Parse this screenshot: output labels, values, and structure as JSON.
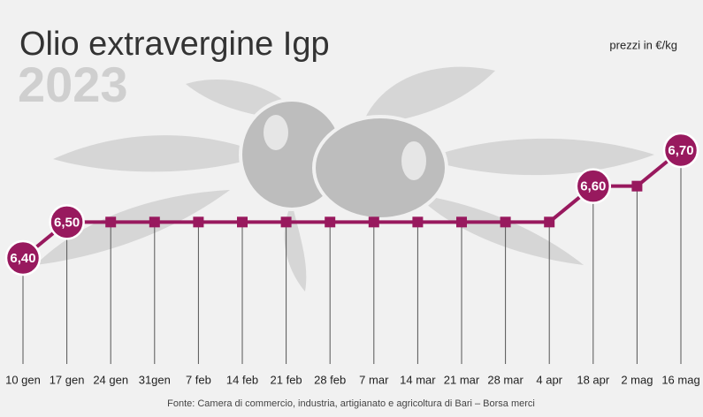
{
  "chart_data": {
    "type": "line",
    "title": "Olio extravergine Igp",
    "subtitle": "2023",
    "unit_note": "prezzi in €/kg",
    "source": "Fonte: Camera di commercio, industria, artigianato e agricoltura di Bari – Borsa merci",
    "categories": [
      "10 gen",
      "17 gen",
      "24 gen",
      "31gen",
      "7 feb",
      "14 feb",
      "21 feb",
      "28 feb",
      "7 mar",
      "14 mar",
      "21 mar",
      "28 mar",
      "4 apr",
      "18 apr",
      "2 mag",
      "16 mag"
    ],
    "values": [
      6.4,
      6.5,
      6.5,
      6.5,
      6.5,
      6.5,
      6.5,
      6.5,
      6.5,
      6.5,
      6.5,
      6.5,
      6.5,
      6.6,
      6.6,
      6.7
    ],
    "value_labels": [
      "6,40",
      "6,50",
      null,
      null,
      null,
      null,
      null,
      null,
      null,
      null,
      null,
      null,
      null,
      "6,60",
      null,
      "6,70"
    ],
    "color": "#98195e"
  }
}
